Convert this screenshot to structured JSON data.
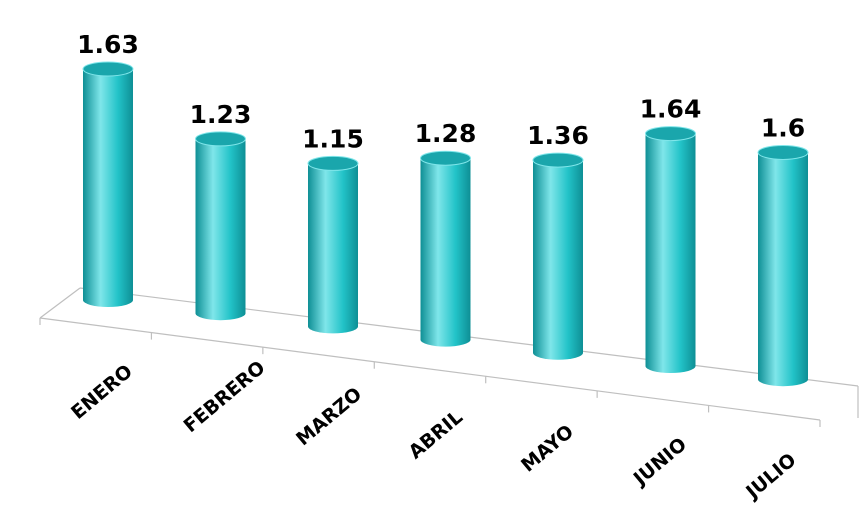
{
  "chart_data": {
    "type": "bar",
    "style": "3d-cylinder",
    "categories": [
      "ENERO",
      "FEBRERO",
      "MARZO",
      "ABRIL",
      "MAYO",
      "JUNIO",
      "JULIO"
    ],
    "values": [
      1.63,
      1.23,
      1.15,
      1.28,
      1.36,
      1.64,
      1.6
    ],
    "data_labels": [
      "1.63",
      "1.23",
      "1.15",
      "1.28",
      "1.36",
      "1.64",
      "1.6"
    ],
    "title": "",
    "xlabel": "",
    "ylabel": "",
    "ylim": [
      0,
      1.7
    ],
    "grid": false,
    "legend": "none",
    "colors": {
      "bar_fill": "#22C3C8",
      "bar_dark": "#0E8F95",
      "bar_light": "#7FE6EA",
      "bar_top": "#1AA6AC",
      "floor_line": "#BFBFBF"
    }
  }
}
